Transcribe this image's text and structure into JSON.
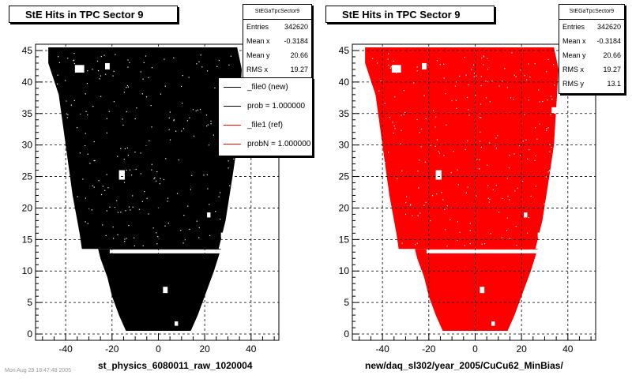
{
  "chart_data": [
    {
      "type": "heatmap",
      "title": "StE Hits in TPC Sector 9",
      "xlabel": "st_physics_6080011_raw_1020004",
      "ylabel": "",
      "xlim": [
        -53,
        52
      ],
      "ylim": [
        -1,
        46
      ],
      "xticks": [
        -40,
        -20,
        0,
        20,
        40
      ],
      "yticks": [
        0,
        5,
        10,
        15,
        20,
        25,
        30,
        35,
        40,
        45
      ],
      "grid": true,
      "fill_color": "#000000",
      "stats": {
        "name": "StEGaTpcSector9",
        "rows": [
          {
            "label": "Entries",
            "value": "342620"
          },
          {
            "label": "Mean x",
            "value": "-0.3184"
          },
          {
            "label": "Mean y",
            "value": "20.66"
          },
          {
            "label": "RMS x",
            "value": "19.27"
          }
        ]
      },
      "legend": {
        "placement": "top-right",
        "entries": [
          {
            "label": "_file0 (new)",
            "color": "#000000"
          },
          {
            "label": "prob = 1.000000",
            "color": "#000000"
          },
          {
            "label": "_file1 (ref)",
            "color": "#ff0000"
          },
          {
            "label": "probN = 1.000000",
            "color": "#ff0000"
          }
        ]
      }
    },
    {
      "type": "heatmap",
      "title": "StE Hits in TPC Sector 9",
      "xlabel": "new/daq_sl302/year_2005/CuCu62_MinBias/",
      "ylabel": "",
      "xlim": [
        -53,
        52
      ],
      "ylim": [
        -1,
        46
      ],
      "xticks": [
        -40,
        -20,
        0,
        20,
        40
      ],
      "yticks": [
        0,
        5,
        10,
        15,
        20,
        25,
        30,
        35,
        40,
        45
      ],
      "grid": true,
      "fill_color": "#ff0000",
      "stats": {
        "name": "StEGaTpcSector9",
        "rows": [
          {
            "label": "Entries",
            "value": "342620"
          },
          {
            "label": "Mean x",
            "value": "-0.3184"
          },
          {
            "label": "Mean y",
            "value": "20.66"
          },
          {
            "label": "RMS x",
            "value": "19.27"
          },
          {
            "label": "RMS y",
            "value": "13.1"
          }
        ]
      }
    }
  ],
  "footer": "Mon Aug 29 18:47:48 2005"
}
